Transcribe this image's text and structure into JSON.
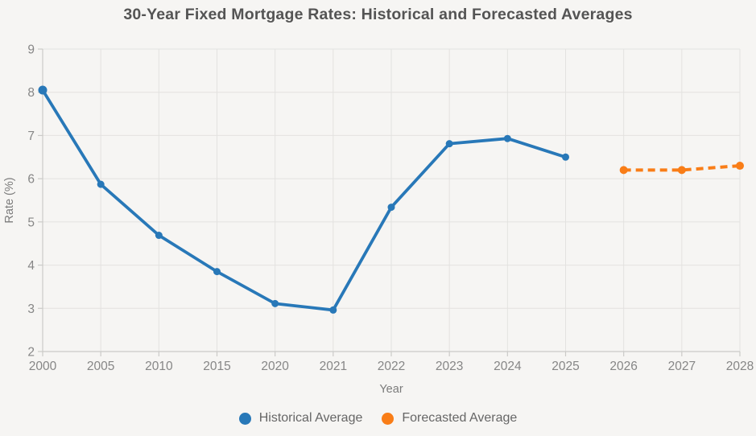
{
  "chart_data": {
    "type": "line",
    "title": "30-Year Fixed Mortgage Rates: Historical and Forecasted Averages",
    "xlabel": "Year",
    "ylabel": "Rate (%)",
    "categories": [
      "2000",
      "2005",
      "2010",
      "2015",
      "2020",
      "2021",
      "2022",
      "2023",
      "2024",
      "2025",
      "2026",
      "2027",
      "2028"
    ],
    "y_ticks": [
      2,
      3,
      4,
      5,
      6,
      7,
      8,
      9
    ],
    "ylim": [
      2,
      9
    ],
    "grid": true,
    "legend_position": "bottom",
    "background": "#f6f5f3",
    "gridline_color": "#e3e2e0",
    "axis_color": "#cbcac8",
    "series": [
      {
        "name": "Historical Average",
        "color": "#2878b8",
        "style": "solid",
        "x": [
          "2000",
          "2005",
          "2010",
          "2015",
          "2020",
          "2021",
          "2022",
          "2023",
          "2024",
          "2025"
        ],
        "values": [
          8.05,
          5.87,
          4.69,
          3.85,
          3.11,
          2.96,
          5.34,
          6.81,
          6.93,
          6.5
        ]
      },
      {
        "name": "Forecasted Average",
        "color": "#f97d17",
        "style": "dashed",
        "x": [
          "2026",
          "2027",
          "2028"
        ],
        "values": [
          6.2,
          6.2,
          6.3
        ]
      }
    ]
  }
}
